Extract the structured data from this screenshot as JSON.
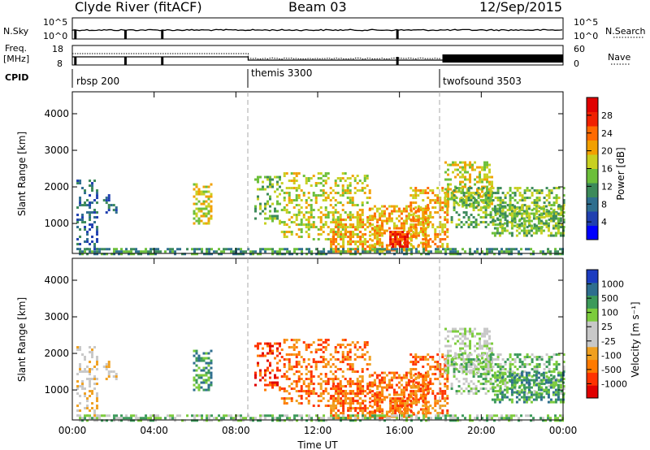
{
  "header": {
    "station": "Clyde River (fitACF)",
    "beam": "Beam 03",
    "date": "12/Sep/2015"
  },
  "top_panels": {
    "nsky_label": "N.Sky",
    "nsky_ticks": [
      "10^5",
      "10^0"
    ],
    "nsearch_label": "N.Search",
    "freq_label_1": "Freq.",
    "freq_label_2": "[MHz]",
    "freq_ticks": [
      "18",
      "8"
    ],
    "nave_label": "Nave",
    "nave_ticks": [
      "60",
      "0"
    ],
    "cpid_label": "CPID",
    "cpid_segments": [
      {
        "name": "rbsp 200",
        "start_hour": 0
      },
      {
        "name": "themis 3300",
        "start_hour": 8.6
      },
      {
        "name": "twofsound 3503",
        "start_hour": 18.1
      }
    ]
  },
  "chart_data": [
    {
      "type": "heatmap",
      "title": "Power",
      "ylabel": "Slant Range [km]",
      "xlabel": "Time UT",
      "x_ticks": [
        "00:00",
        "04:00",
        "08:00",
        "12:00",
        "16:00",
        "20:00",
        "00:00"
      ],
      "xlim_hours": [
        0,
        24
      ],
      "y_ticks": [
        1000,
        2000,
        3000,
        4000
      ],
      "ylim": [
        180,
        4600
      ],
      "colorbar_label": "Power [dB]",
      "colorbar_ticks": [
        "28",
        "24",
        "20",
        "16",
        "12",
        "8",
        "4"
      ],
      "colorbar_range": [
        0,
        30
      ],
      "colors": [
        "#0000ff",
        "#2040b0",
        "#2e6e8e",
        "#3c8a5a",
        "#6cbf3a",
        "#c8d020",
        "#f2a000",
        "#ff6a00",
        "#f02000",
        "#e00000"
      ]
    },
    {
      "type": "heatmap",
      "title": "Velocity",
      "ylabel": "Slant Range [km]",
      "xlabel": "Time UT",
      "x_ticks": [
        "00:00",
        "04:00",
        "08:00",
        "12:00",
        "16:00",
        "20:00",
        "00:00"
      ],
      "xlim_hours": [
        0,
        24
      ],
      "y_ticks": [
        1000,
        2000,
        3000,
        4000
      ],
      "ylim": [
        180,
        4600
      ],
      "colorbar_label": "Velocity [m s⁻¹]",
      "colorbar_ticks": [
        "1000",
        "500",
        "100",
        "25",
        "-25",
        "-100",
        "-500",
        "-1000"
      ],
      "colors": [
        "#e00000",
        "#ff3300",
        "#ff7a00",
        "#f0a020",
        "#c8c8c8",
        "#c8c8c8",
        "#7ccc3c",
        "#3c9a5a",
        "#2e6e8e",
        "#1c3cc0"
      ]
    }
  ],
  "time_axis_title": "Time UT"
}
